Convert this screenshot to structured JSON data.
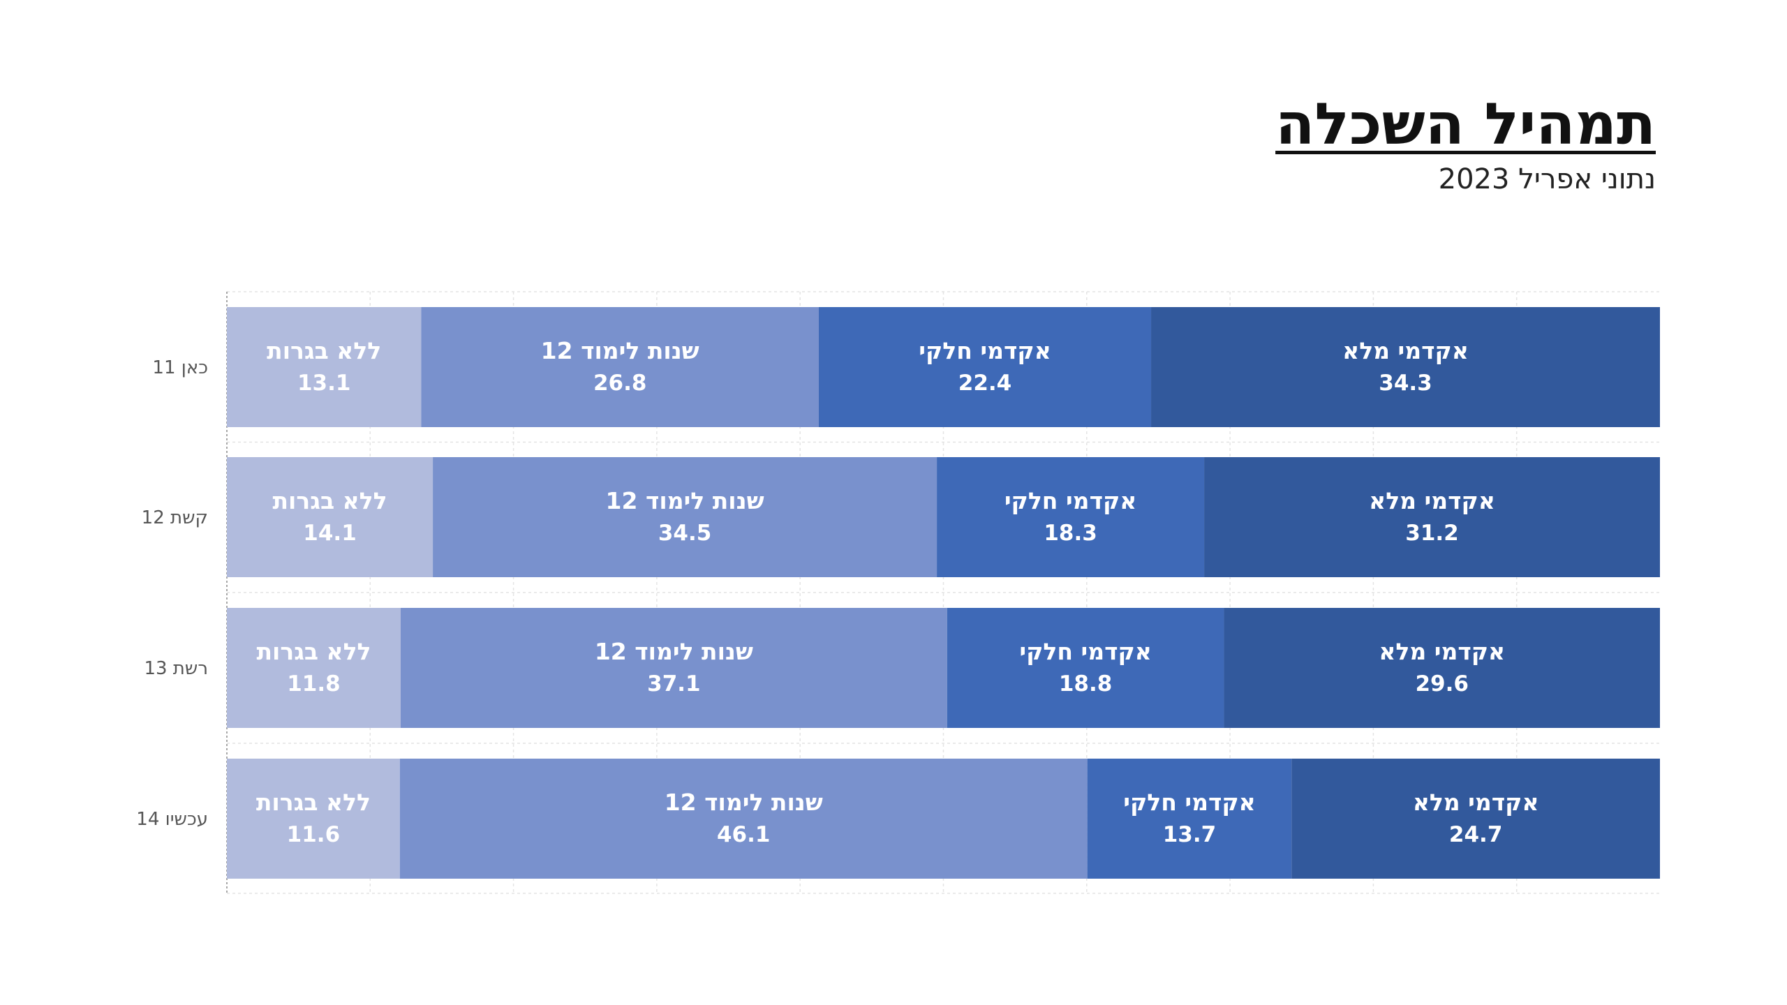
{
  "chart_data": {
    "type": "bar",
    "orientation": "horizontal",
    "stacked": "100%",
    "title": "תמהיל השכלה",
    "subtitle": "נתוני אפריל 2023",
    "categories": [
      "כאן 11",
      "קשת 12",
      "רשת 13",
      "עכשיו 14"
    ],
    "series": [
      {
        "name": "ללא בגרות",
        "color": "#b1bbdd",
        "values": [
          13.1,
          14.1,
          11.8,
          11.6
        ]
      },
      {
        "name": "12 שנות לימוד",
        "color": "#7991cd",
        "values": [
          26.8,
          34.5,
          37.1,
          46.1
        ]
      },
      {
        "name": "אקדמי חלקי",
        "color": "#3e69b7",
        "values": [
          22.4,
          18.3,
          18.8,
          13.7
        ]
      },
      {
        "name": "אקדמי מלא",
        "color": "#32599c",
        "values": [
          34.3,
          31.2,
          29.6,
          24.7
        ]
      }
    ],
    "xlim": [
      0,
      100
    ],
    "grid": true,
    "legend": "none",
    "data_labels": "series name and value inside each segment"
  }
}
